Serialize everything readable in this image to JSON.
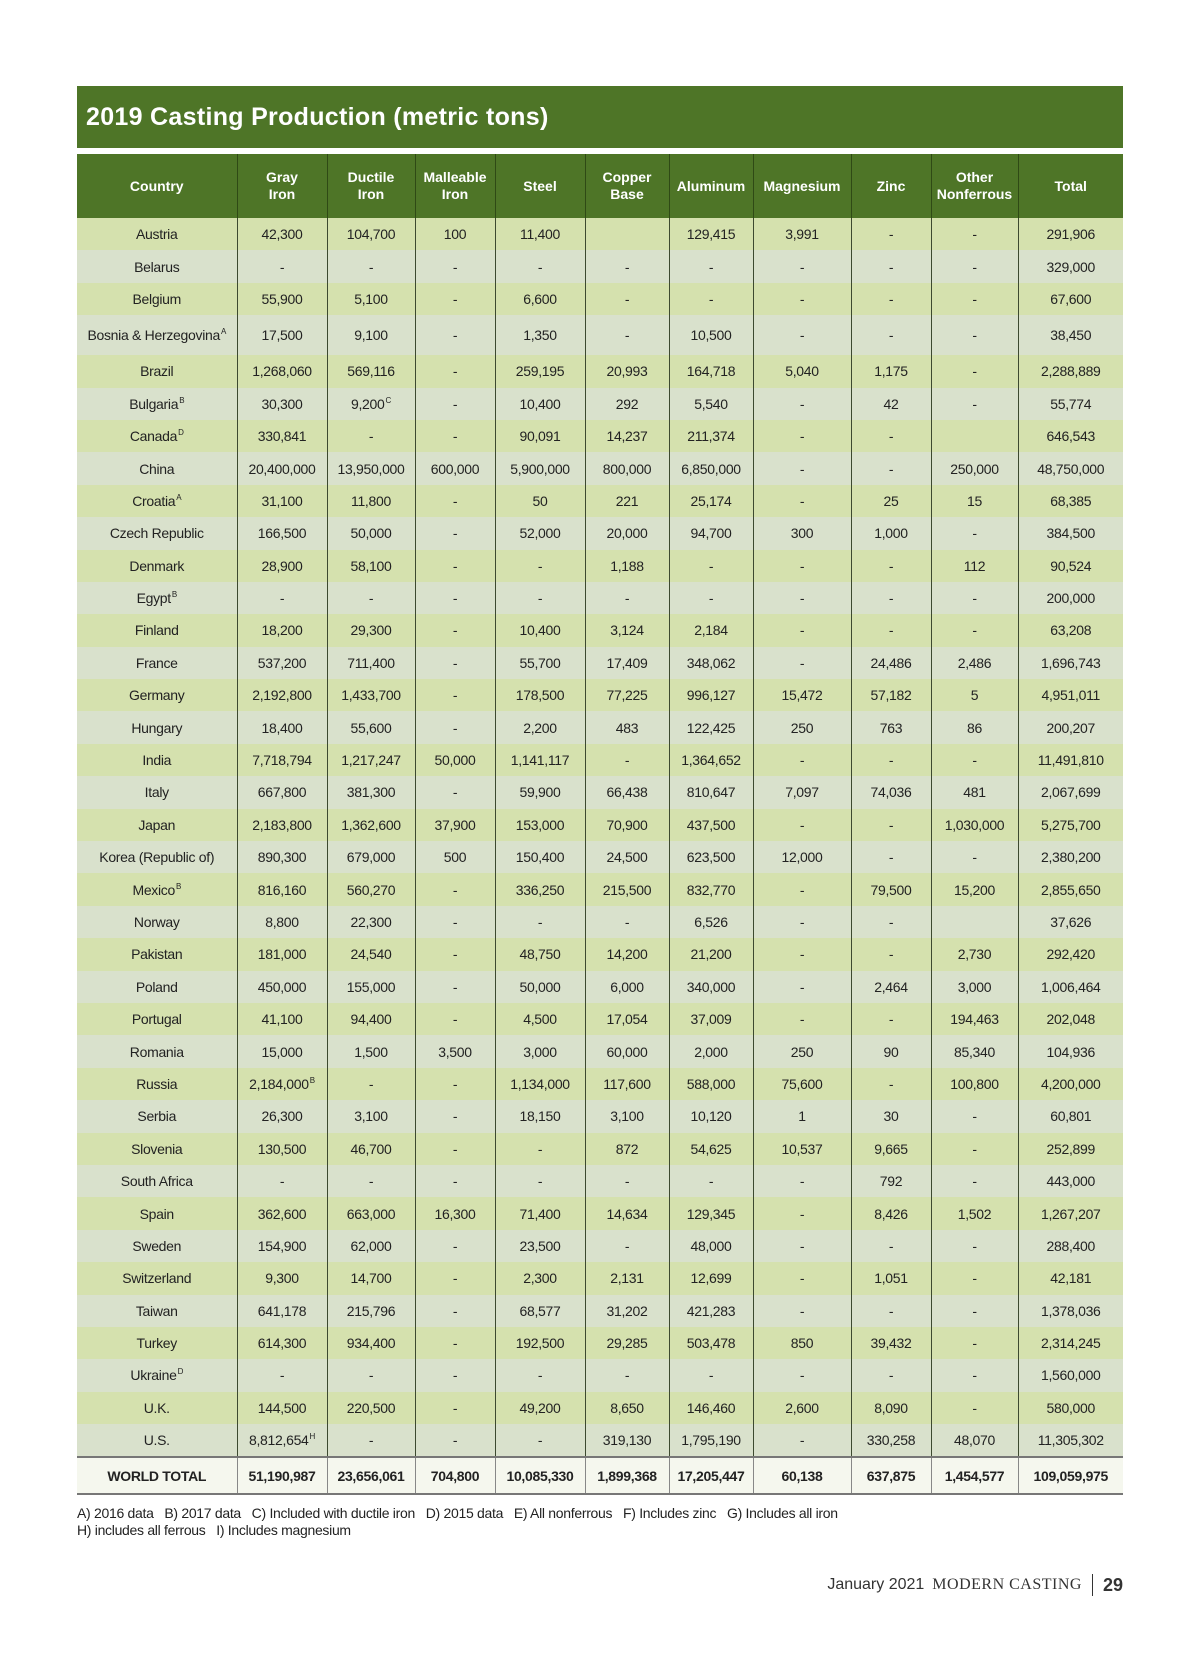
{
  "title": "2019 Casting Production (metric tons)",
  "columns": [
    "Country",
    "Gray\nIron",
    "Ductile\nIron",
    "Malleable\nIron",
    "Steel",
    "Copper\nBase",
    "Aluminum",
    "Magnesium",
    "Zinc",
    "Other\nNonferrous",
    "Total"
  ],
  "rows": [
    {
      "country": "Austria",
      "values": [
        "42,300",
        "104,700",
        "100",
        "11,400",
        "",
        "129,415",
        "3,991",
        "-",
        "-",
        "291,906"
      ]
    },
    {
      "country": "Belarus",
      "values": [
        "-",
        "-",
        "-",
        "-",
        "-",
        "-",
        "-",
        "-",
        "-",
        "329,000"
      ]
    },
    {
      "country": "Belgium",
      "values": [
        "55,900",
        "5,100",
        "-",
        "6,600",
        "-",
        "-",
        "-",
        "-",
        "-",
        "67,600"
      ]
    },
    {
      "country": "Bosnia & Herzegovina",
      "note": "A",
      "values": [
        "17,500",
        "9,100",
        "-",
        "1,350",
        "-",
        "10,500",
        "-",
        "-",
        "-",
        "38,450"
      ]
    },
    {
      "country": "Brazil",
      "values": [
        "1,268,060",
        "569,116",
        "-",
        "259,195",
        "20,993",
        "164,718",
        "5,040",
        "1,175",
        "-",
        "2,288,889"
      ]
    },
    {
      "country": "Bulgaria",
      "note": "B",
      "values": [
        "30,300",
        "9,200",
        "-",
        "10,400",
        "292",
        "5,540",
        "-",
        "42",
        "-",
        "55,774"
      ],
      "value_notes": {
        "1": "C"
      }
    },
    {
      "country": "Canada",
      "note": "D",
      "values": [
        "330,841",
        "-",
        "-",
        "90,091",
        "14,237",
        "211,374",
        "-",
        "-",
        "",
        "646,543"
      ]
    },
    {
      "country": "China",
      "values": [
        "20,400,000",
        "13,950,000",
        "600,000",
        "5,900,000",
        "800,000",
        "6,850,000",
        "-",
        "-",
        "250,000",
        "48,750,000"
      ]
    },
    {
      "country": "Croatia",
      "note": "A",
      "values": [
        "31,100",
        "11,800",
        "-",
        "50",
        "221",
        "25,174",
        "-",
        "25",
        "15",
        "68,385"
      ]
    },
    {
      "country": "Czech Republic",
      "values": [
        "166,500",
        "50,000",
        "-",
        "52,000",
        "20,000",
        "94,700",
        "300",
        "1,000",
        "-",
        "384,500"
      ]
    },
    {
      "country": "Denmark",
      "values": [
        "28,900",
        "58,100",
        "-",
        "-",
        "1,188",
        "-",
        "-",
        "-",
        "112",
        "90,524"
      ]
    },
    {
      "country": "Egypt",
      "note": "B",
      "values": [
        "-",
        "-",
        "-",
        "-",
        "-",
        "-",
        "-",
        "-",
        "-",
        "200,000"
      ]
    },
    {
      "country": "Finland",
      "values": [
        "18,200",
        "29,300",
        "-",
        "10,400",
        "3,124",
        "2,184",
        "-",
        "-",
        "-",
        "63,208"
      ]
    },
    {
      "country": "France",
      "values": [
        "537,200",
        "711,400",
        "-",
        "55,700",
        "17,409",
        "348,062",
        "-",
        "24,486",
        "2,486",
        "1,696,743"
      ]
    },
    {
      "country": "Germany",
      "values": [
        "2,192,800",
        "1,433,700",
        "-",
        "178,500",
        "77,225",
        "996,127",
        "15,472",
        "57,182",
        "5",
        "4,951,011"
      ]
    },
    {
      "country": "Hungary",
      "values": [
        "18,400",
        "55,600",
        "-",
        "2,200",
        "483",
        "122,425",
        "250",
        "763",
        "86",
        "200,207"
      ]
    },
    {
      "country": "India",
      "values": [
        "7,718,794",
        "1,217,247",
        "50,000",
        "1,141,117",
        "-",
        "1,364,652",
        "-",
        "-",
        "-",
        "11,491,810"
      ]
    },
    {
      "country": "Italy",
      "values": [
        "667,800",
        "381,300",
        "-",
        "59,900",
        "66,438",
        "810,647",
        "7,097",
        "74,036",
        "481",
        "2,067,699"
      ]
    },
    {
      "country": "Japan",
      "values": [
        "2,183,800",
        "1,362,600",
        "37,900",
        "153,000",
        "70,900",
        "437,500",
        "-",
        "-",
        "1,030,000",
        "5,275,700"
      ]
    },
    {
      "country": "Korea (Republic of)",
      "values": [
        "890,300",
        "679,000",
        "500",
        "150,400",
        "24,500",
        "623,500",
        "12,000",
        "-",
        "-",
        "2,380,200"
      ]
    },
    {
      "country": "Mexico",
      "note": "B",
      "values": [
        "816,160",
        "560,270",
        "-",
        "336,250",
        "215,500",
        "832,770",
        "-",
        "79,500",
        "15,200",
        "2,855,650"
      ]
    },
    {
      "country": "Norway",
      "values": [
        "8,800",
        "22,300",
        "-",
        "-",
        "-",
        "6,526",
        "-",
        "-",
        "",
        "37,626"
      ]
    },
    {
      "country": "Pakistan",
      "values": [
        "181,000",
        "24,540",
        "-",
        "48,750",
        "14,200",
        "21,200",
        "-",
        "-",
        "2,730",
        "292,420"
      ]
    },
    {
      "country": "Poland",
      "values": [
        "450,000",
        "155,000",
        "-",
        "50,000",
        "6,000",
        "340,000",
        "-",
        "2,464",
        "3,000",
        "1,006,464"
      ]
    },
    {
      "country": "Portugal",
      "values": [
        "41,100",
        "94,400",
        "-",
        "4,500",
        "17,054",
        "37,009",
        "-",
        "-",
        "194,463",
        "202,048"
      ]
    },
    {
      "country": "Romania",
      "values": [
        "15,000",
        "1,500",
        "3,500",
        "3,000",
        "60,000",
        "2,000",
        "250",
        "90",
        "85,340",
        "104,936"
      ]
    },
    {
      "country": "Russia",
      "values": [
        "2,184,000",
        "-",
        "-",
        "1,134,000",
        "117,600",
        "588,000",
        "75,600",
        "-",
        "100,800",
        "4,200,000"
      ],
      "value_notes": {
        "0": "B"
      }
    },
    {
      "country": "Serbia",
      "values": [
        "26,300",
        "3,100",
        "-",
        "18,150",
        "3,100",
        "10,120",
        "1",
        "30",
        "-",
        "60,801"
      ]
    },
    {
      "country": "Slovenia",
      "values": [
        "130,500",
        "46,700",
        "-",
        "-",
        "872",
        "54,625",
        "10,537",
        "9,665",
        "-",
        "252,899"
      ]
    },
    {
      "country": "South Africa",
      "values": [
        "-",
        "-",
        "-",
        "-",
        "-",
        "-",
        "-",
        "792",
        "-",
        "443,000"
      ]
    },
    {
      "country": "Spain",
      "values": [
        "362,600",
        "663,000",
        "16,300",
        "71,400",
        "14,634",
        "129,345",
        "-",
        "8,426",
        "1,502",
        "1,267,207"
      ]
    },
    {
      "country": "Sweden",
      "values": [
        "154,900",
        "62,000",
        "-",
        "23,500",
        "-",
        "48,000",
        "-",
        "-",
        "-",
        "288,400"
      ]
    },
    {
      "country": "Switzerland",
      "values": [
        "9,300",
        "14,700",
        "-",
        "2,300",
        "2,131",
        "12,699",
        "-",
        "1,051",
        "-",
        "42,181"
      ]
    },
    {
      "country": "Taiwan",
      "values": [
        "641,178",
        "215,796",
        "-",
        "68,577",
        "31,202",
        "421,283",
        "-",
        "-",
        "-",
        "1,378,036"
      ]
    },
    {
      "country": "Turkey",
      "values": [
        "614,300",
        "934,400",
        "-",
        "192,500",
        "29,285",
        "503,478",
        "850",
        "39,432",
        "-",
        "2,314,245"
      ]
    },
    {
      "country": "Ukraine",
      "note": "D",
      "values": [
        "-",
        "-",
        "-",
        "-",
        "-",
        "-",
        "-",
        "-",
        "-",
        "1,560,000"
      ]
    },
    {
      "country": "U.K.",
      "values": [
        "144,500",
        "220,500",
        "-",
        "49,200",
        "8,650",
        "146,460",
        "2,600",
        "8,090",
        "-",
        "580,000"
      ]
    },
    {
      "country": "U.S.",
      "values": [
        "8,812,654",
        "-",
        "-",
        "-",
        "319,130",
        "1,795,190",
        "-",
        "330,258",
        "48,070",
        "11,305,302"
      ],
      "value_notes": {
        "0": "H"
      }
    }
  ],
  "world_total": {
    "country": "WORLD TOTAL",
    "values": [
      "51,190,987",
      "23,656,061",
      "704,800",
      "10,085,330",
      "1,899,368",
      "17,205,447",
      "60,138",
      "637,875",
      "1,454,577",
      "109,059,975"
    ]
  },
  "footnotes": {
    "line1": "A) 2016 data   B) 2017 data   C) Included with ductile iron   D) 2015 data   E) All nonferrous   F) Includes zinc   G) Includes all iron",
    "line2": "H) includes all ferrous   I) Includes magnesium"
  },
  "footer": {
    "date": "January 2021",
    "magazine": "MODERN CASTING",
    "page": "29"
  },
  "colors": {
    "header_green": "#4e7527",
    "row_green": "#d5e1ae",
    "row_gray": "#d9e1cc"
  }
}
